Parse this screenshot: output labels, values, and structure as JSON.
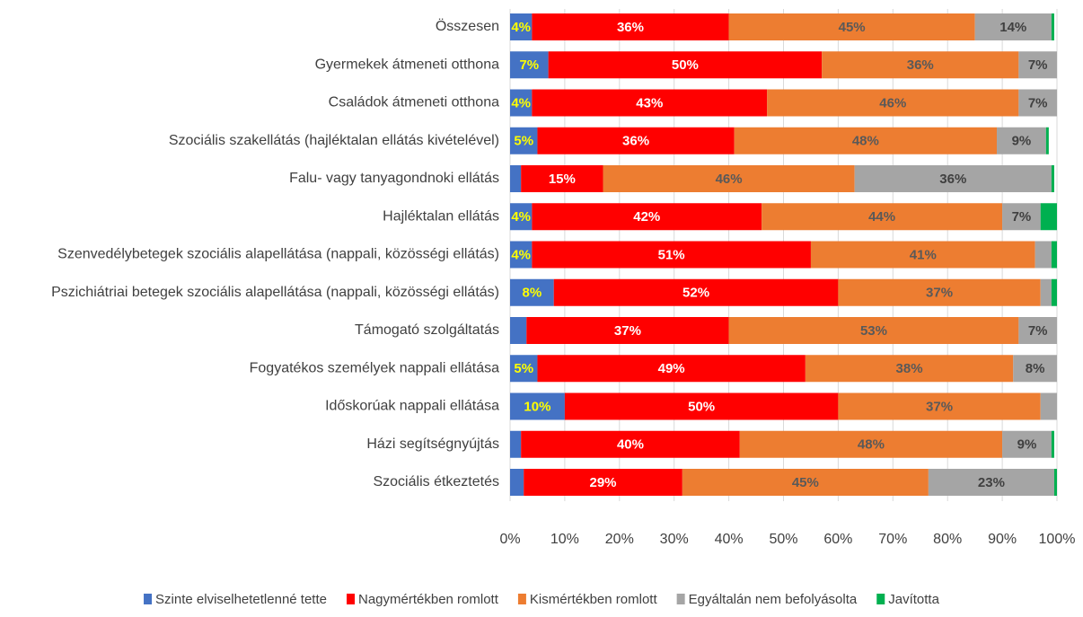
{
  "chart_data": {
    "type": "stacked_barh",
    "categories": [
      "Összesen",
      "Gyermekek átmeneti otthona",
      "Családok átmeneti otthona",
      "Szociális szakellátás (hajléktalan ellátás kivételével)",
      "Falu- vagy tanyagondnoki ellátás",
      "Hajléktalan ellátás",
      "Szenvedélybetegek szociális alapellátása (nappali, közösségi ellátás)",
      "Pszichiátriai betegek szociális alapellátása (nappali, közösségi ellátás)",
      "Támogató szolgáltatás",
      "Fogyatékos személyek nappali ellátása",
      "Időskorúak nappali ellátása",
      "Házi segítségnyújtás",
      "Szociális étkeztetés"
    ],
    "series": [
      {
        "name": "Szinte elviselhetetlenné tette",
        "color": "#4472c4",
        "label_color": "#ffff00",
        "values": [
          4,
          7,
          4,
          5,
          2,
          4,
          4,
          8,
          3,
          5,
          10,
          2,
          2.5
        ],
        "value_labels": [
          "4%",
          "7%",
          "4%",
          "5%",
          null,
          "4%",
          "4%",
          "8%",
          null,
          "5%",
          "10%",
          null,
          null
        ]
      },
      {
        "name": "Nagymértékben romlott",
        "color": "#ff0000",
        "label_color": "#ffffff",
        "values": [
          36,
          50,
          43,
          36,
          15,
          42,
          51,
          52,
          37,
          49,
          50,
          40,
          29
        ],
        "value_labels": [
          "36%",
          "50%",
          "43%",
          "36%",
          "15%",
          "42%",
          "51%",
          "52%",
          "37%",
          "49%",
          "50%",
          "40%",
          "29%"
        ]
      },
      {
        "name": "Kismértékben romlott",
        "color": "#ed7d31",
        "label_color": "#595959",
        "values": [
          45,
          36,
          46,
          48,
          46,
          44,
          41,
          37,
          53,
          38,
          37,
          48,
          45
        ],
        "value_labels": [
          "45%",
          "36%",
          "46%",
          "48%",
          "46%",
          "44%",
          "41%",
          "37%",
          "53%",
          "38%",
          "37%",
          "48%",
          "45%"
        ]
      },
      {
        "name": "Egyáltalán nem befolyásolta",
        "color": "#a5a5a5",
        "label_color": "#404040",
        "values": [
          14,
          7,
          7,
          9,
          36,
          7,
          3,
          2,
          7,
          8,
          3,
          9,
          23
        ],
        "value_labels": [
          "14%",
          "7%",
          "7%",
          "9%",
          "36%",
          "7%",
          null,
          null,
          "7%",
          "8%",
          null,
          "9%",
          "23%"
        ]
      },
      {
        "name": "Javította",
        "color": "#00b050",
        "label_color": "#404040",
        "values": [
          0.5,
          0,
          0,
          0.5,
          0.5,
          3,
          1,
          1,
          0,
          0,
          0,
          0.5,
          0.5
        ],
        "value_labels": [
          null,
          null,
          null,
          null,
          null,
          null,
          null,
          null,
          null,
          null,
          null,
          null,
          null
        ]
      }
    ],
    "xlim": [
      0,
      100
    ],
    "xticks": [
      {
        "value": 0,
        "label": "0%"
      },
      {
        "value": 10,
        "label": "10%"
      },
      {
        "value": 20,
        "label": "20%"
      },
      {
        "value": 30,
        "label": "30%"
      },
      {
        "value": 40,
        "label": "40%"
      },
      {
        "value": 50,
        "label": "50%"
      },
      {
        "value": 60,
        "label": "60%"
      },
      {
        "value": 70,
        "label": "70%"
      },
      {
        "value": 80,
        "label": "80%"
      },
      {
        "value": 90,
        "label": "90%"
      },
      {
        "value": 100,
        "label": "100%"
      }
    ],
    "grid": true,
    "legend": "bottom"
  }
}
